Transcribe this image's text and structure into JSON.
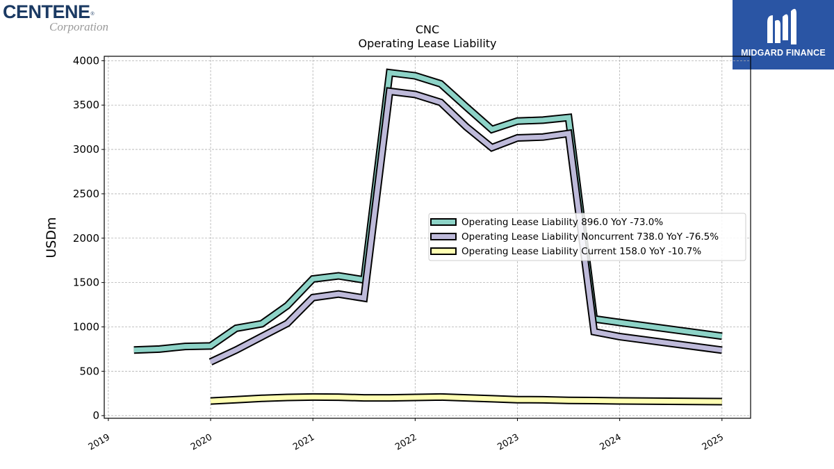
{
  "logos": {
    "left": {
      "name": "CENTENE",
      "mark": "®",
      "sub": "Corporation"
    },
    "right": {
      "name": "MIDGARD FINANCE"
    }
  },
  "chart_data": {
    "type": "line",
    "title": "CNC",
    "subtitle": "Operating Lease Liability",
    "ylabel": "USDm",
    "xlim": [
      2018.96,
      2025.28
    ],
    "ylim": [
      -30,
      4050
    ],
    "yticks": [
      0,
      500,
      1000,
      1500,
      2000,
      2500,
      3000,
      3500,
      4000
    ],
    "xticks": [
      2019,
      2020,
      2021,
      2022,
      2023,
      2024,
      2025
    ],
    "xtick_labels": [
      "2019",
      "2020",
      "2021",
      "2022",
      "2023",
      "2024",
      "2025"
    ],
    "grid": true,
    "legend_position": "center-right",
    "series": [
      {
        "name": "Operating Lease Liability  896.0 YoY -73.0%",
        "color": "#8dd3c7",
        "points": [
          [
            2019.25,
            740
          ],
          [
            2019.5,
            750
          ],
          [
            2019.75,
            780
          ],
          [
            2020.0,
            785
          ],
          [
            2020.25,
            985
          ],
          [
            2020.5,
            1035
          ],
          [
            2020.75,
            1240
          ],
          [
            2021.0,
            1540
          ],
          [
            2021.25,
            1575
          ],
          [
            2021.5,
            1530
          ],
          [
            2021.75,
            3865
          ],
          [
            2022.0,
            3830
          ],
          [
            2022.25,
            3740
          ],
          [
            2022.5,
            3480
          ],
          [
            2022.75,
            3225
          ],
          [
            2023.0,
            3320
          ],
          [
            2023.25,
            3330
          ],
          [
            2023.5,
            3360
          ],
          [
            2023.75,
            1090
          ],
          [
            2024.0,
            1050
          ],
          [
            2025.0,
            896
          ]
        ]
      },
      {
        "name": "Operating Lease Liability Noncurrent  738.0 YoY -76.5%",
        "color": "#bebada",
        "points": [
          [
            2020.0,
            605
          ],
          [
            2020.25,
            740
          ],
          [
            2020.5,
            890
          ],
          [
            2020.75,
            1040
          ],
          [
            2021.0,
            1330
          ],
          [
            2021.25,
            1370
          ],
          [
            2021.5,
            1325
          ],
          [
            2021.75,
            3655
          ],
          [
            2022.0,
            3620
          ],
          [
            2022.25,
            3530
          ],
          [
            2022.5,
            3255
          ],
          [
            2022.75,
            3020
          ],
          [
            2023.0,
            3130
          ],
          [
            2023.25,
            3140
          ],
          [
            2023.5,
            3180
          ],
          [
            2023.75,
            945
          ],
          [
            2024.0,
            890
          ],
          [
            2025.0,
            738
          ]
        ]
      },
      {
        "name": "Operating Lease Liability Current  158.0 YoY -10.7%",
        "color": "#ffffb3",
        "points": [
          [
            2020.0,
            165
          ],
          [
            2020.25,
            180
          ],
          [
            2020.5,
            195
          ],
          [
            2020.75,
            205
          ],
          [
            2021.0,
            210
          ],
          [
            2021.25,
            208
          ],
          [
            2021.5,
            200
          ],
          [
            2021.75,
            200
          ],
          [
            2022.0,
            205
          ],
          [
            2022.25,
            210
          ],
          [
            2022.5,
            200
          ],
          [
            2022.75,
            190
          ],
          [
            2023.0,
            180
          ],
          [
            2023.25,
            178
          ],
          [
            2023.5,
            172
          ],
          [
            2023.75,
            170
          ],
          [
            2024.0,
            166
          ],
          [
            2025.0,
            158
          ]
        ]
      }
    ]
  }
}
